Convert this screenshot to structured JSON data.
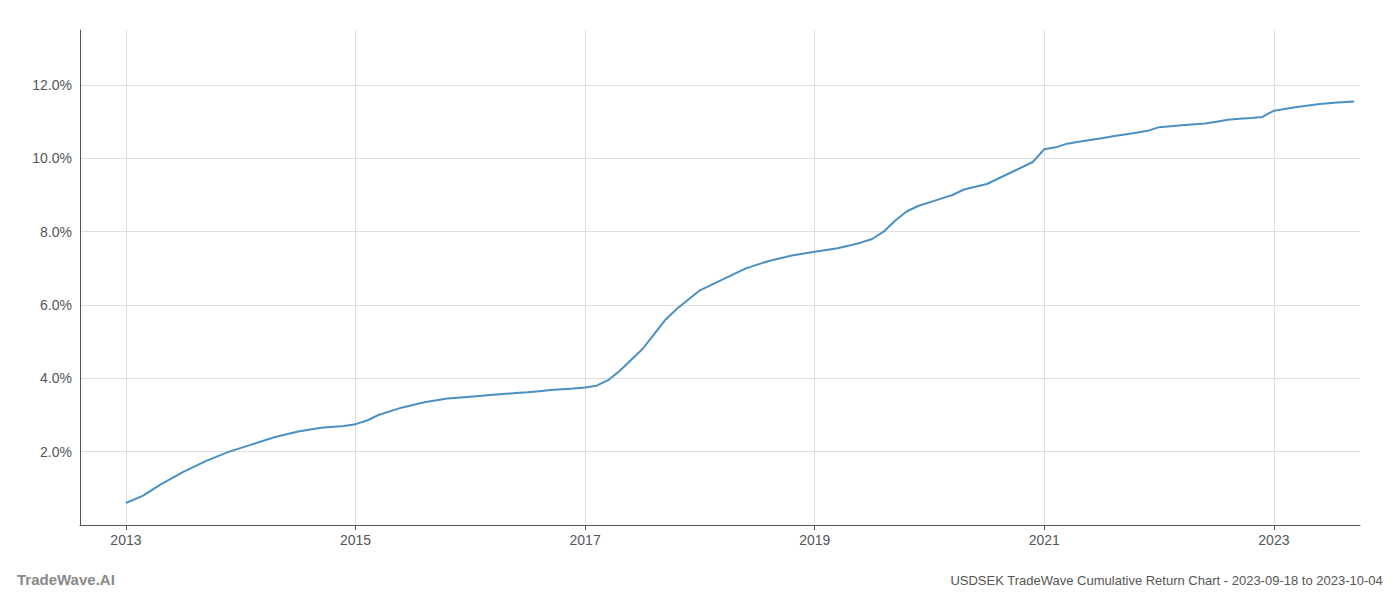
{
  "chart_data": {
    "type": "line",
    "title": "USDSEK TradeWave Cumulative Return Chart - 2023-09-18 to 2023-10-04",
    "annotations": [
      "TradeWave.AI"
    ],
    "color": "#4a90c4",
    "grid": true,
    "xlim": [
      2012.6,
      2023.75
    ],
    "xticks": [
      2013,
      2015,
      2017,
      2019,
      2021,
      2023
    ],
    "ylim": [
      0.0,
      0.135
    ],
    "yticks": [
      {
        "value": 0.02,
        "label": "2.0%"
      },
      {
        "value": 0.04,
        "label": "4.0%"
      },
      {
        "value": 0.06,
        "label": "6.0%"
      },
      {
        "value": 0.08,
        "label": "8.0%"
      },
      {
        "value": 0.1,
        "label": "10.0%"
      },
      {
        "value": 0.12,
        "label": "12.0%"
      }
    ],
    "x": [
      2013.0,
      2013.15,
      2013.3,
      2013.5,
      2013.7,
      2013.9,
      2014.1,
      2014.3,
      2014.5,
      2014.7,
      2014.9,
      2015.0,
      2015.1,
      2015.2,
      2015.4,
      2015.6,
      2015.8,
      2016.0,
      2016.2,
      2016.4,
      2016.5,
      2016.6,
      2016.7,
      2016.8,
      2016.9,
      2017.0,
      2017.1,
      2017.2,
      2017.3,
      2017.5,
      2017.6,
      2017.7,
      2017.8,
      2017.9,
      2018.0,
      2018.1,
      2018.2,
      2018.4,
      2018.6,
      2018.8,
      2019.0,
      2019.1,
      2019.2,
      2019.3,
      2019.4,
      2019.5,
      2019.6,
      2019.7,
      2019.8,
      2019.9,
      2020.0,
      2020.1,
      2020.2,
      2020.3,
      2020.5,
      2020.7,
      2020.9,
      2021.0,
      2021.1,
      2021.2,
      2021.3,
      2021.4,
      2021.5,
      2021.6,
      2021.7,
      2021.8,
      2021.9,
      2022.0,
      2022.2,
      2022.4,
      2022.5,
      2022.6,
      2022.7,
      2022.8,
      2022.9,
      2023.0,
      2023.2,
      2023.4,
      2023.55,
      2023.7
    ],
    "values": [
      0.006,
      0.008,
      0.011,
      0.0145,
      0.0175,
      0.02,
      0.022,
      0.024,
      0.0255,
      0.0265,
      0.027,
      0.0275,
      0.0285,
      0.03,
      0.032,
      0.0335,
      0.0345,
      0.035,
      0.0355,
      0.036,
      0.0362,
      0.0365,
      0.0368,
      0.037,
      0.0372,
      0.0375,
      0.038,
      0.0395,
      0.042,
      0.048,
      0.052,
      0.056,
      0.059,
      0.0615,
      0.064,
      0.0655,
      0.067,
      0.07,
      0.072,
      0.0735,
      0.0745,
      0.075,
      0.0755,
      0.0762,
      0.077,
      0.078,
      0.08,
      0.083,
      0.0855,
      0.087,
      0.088,
      0.089,
      0.09,
      0.0915,
      0.093,
      0.096,
      0.099,
      0.1025,
      0.103,
      0.104,
      0.1045,
      0.105,
      0.1055,
      0.106,
      0.1065,
      0.107,
      0.1075,
      0.1085,
      0.109,
      0.1095,
      0.11,
      0.1105,
      0.1108,
      0.111,
      0.1113,
      0.113,
      0.114,
      0.1148,
      0.1152,
      0.1155
    ]
  }
}
